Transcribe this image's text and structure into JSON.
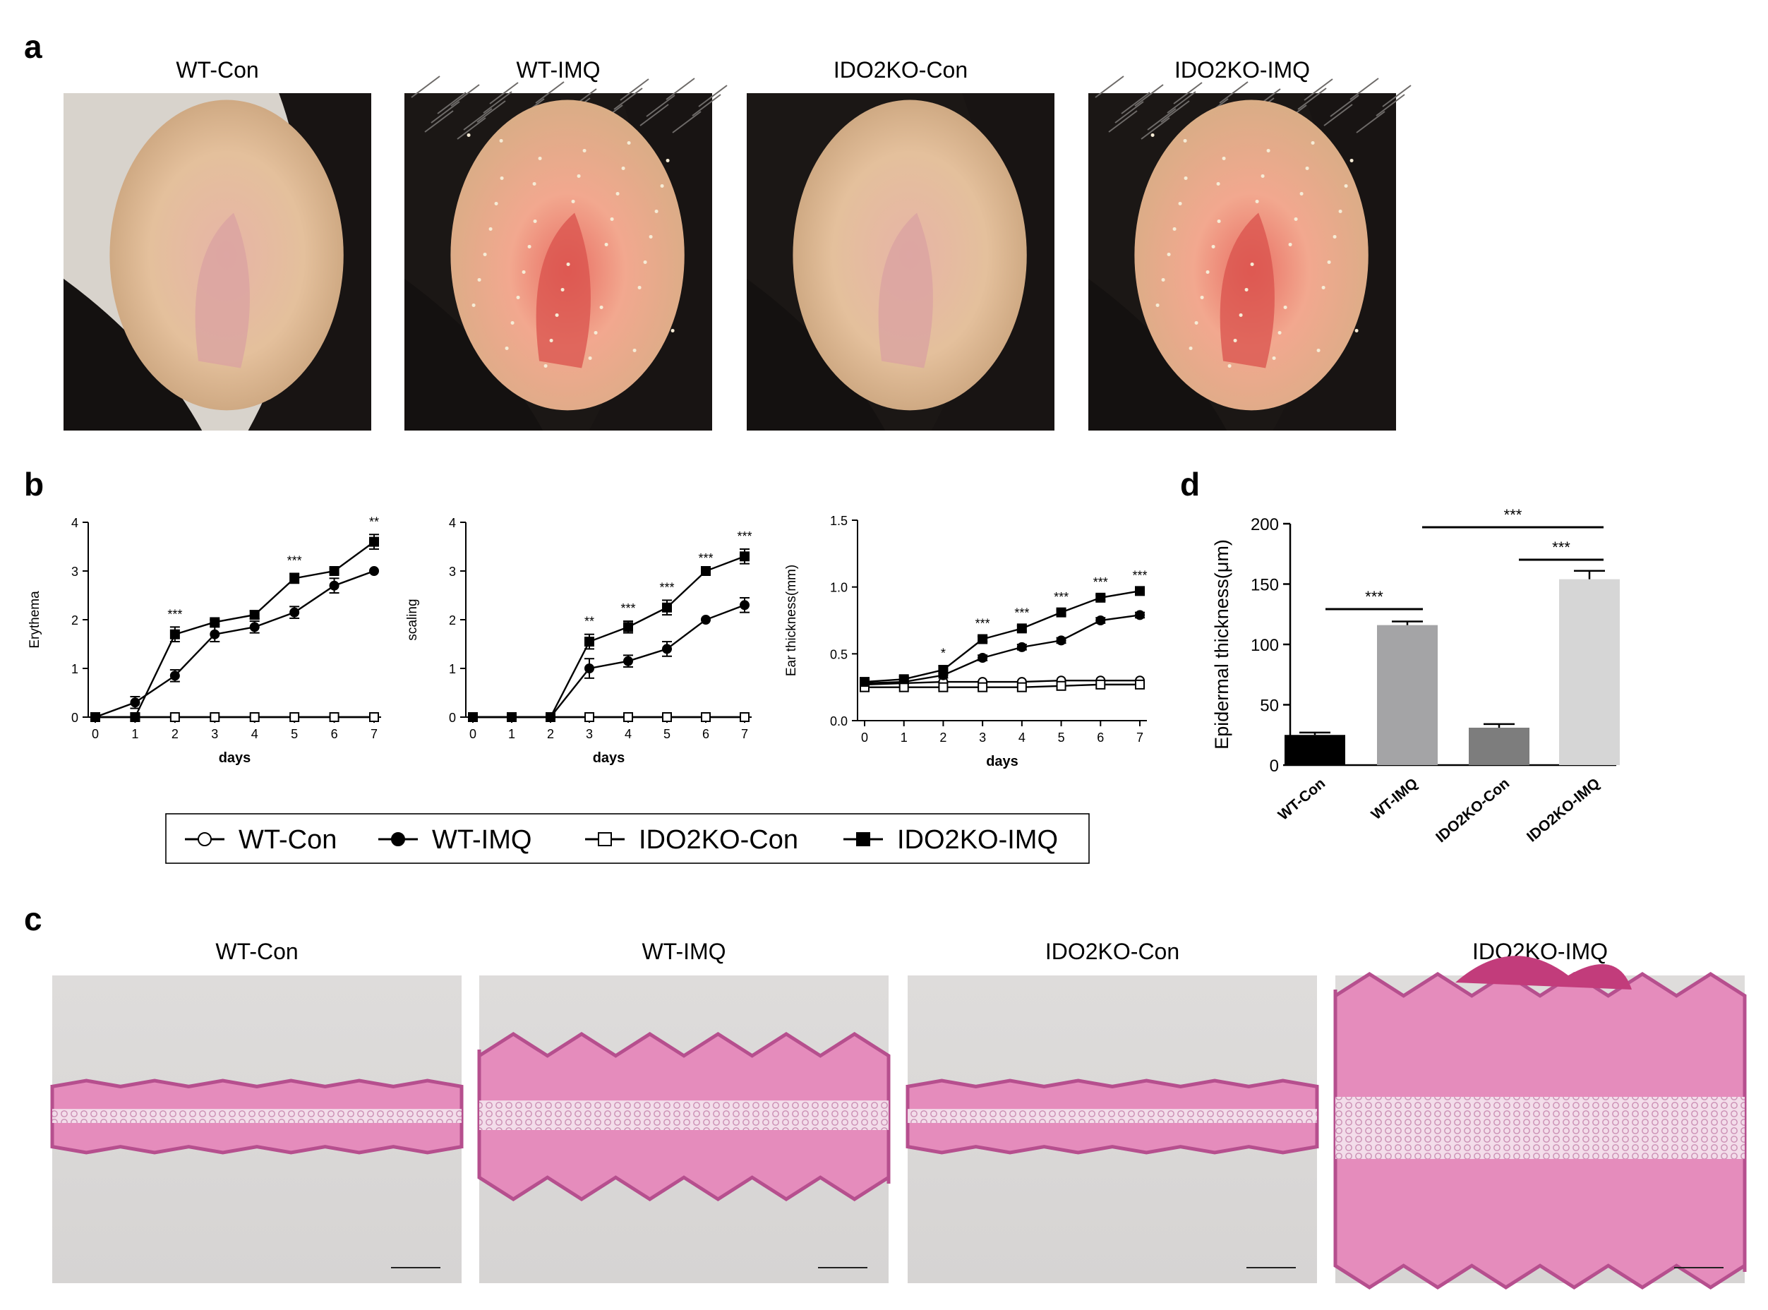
{
  "panels": {
    "a": {
      "letter": "a",
      "photos": [
        {
          "label": "WT-Con",
          "kind": "ear-normal"
        },
        {
          "label": "WT-IMQ",
          "kind": "ear-inflamed"
        },
        {
          "label": "IDO2KO-Con",
          "kind": "ear-normal"
        },
        {
          "label": "IDO2KO-IMQ",
          "kind": "ear-inflamed"
        }
      ]
    },
    "b": {
      "letter": "b"
    },
    "c": {
      "letter": "c",
      "histology": [
        {
          "label": "WT-Con",
          "kind": "thin"
        },
        {
          "label": "WT-IMQ",
          "kind": "thick"
        },
        {
          "label": "IDO2KO-Con",
          "kind": "thin"
        },
        {
          "label": "IDO2KO-IMQ",
          "kind": "very-thick"
        }
      ]
    },
    "d": {
      "letter": "d"
    }
  },
  "legend": {
    "entries": [
      {
        "label": "WT-Con",
        "marker": "open-circle"
      },
      {
        "label": "WT-IMQ",
        "marker": "filled-circle"
      },
      {
        "label": "IDO2KO-Con",
        "marker": "open-square"
      },
      {
        "label": "IDO2KO-IMQ",
        "marker": "filled-square"
      }
    ]
  },
  "colors": {
    "line": "#000000",
    "bar_wt_con": "#000000",
    "bar_wt_imq": "#a4a4a6",
    "bar_ido2ko_con": "#7d7d7d",
    "bar_ido2ko_imq": "#d6d6d6",
    "skin_normal": "#e9c7a4",
    "skin_inflamed": "#f09a86",
    "tissue_pink": "#e58cbc",
    "tissue_purple": "#b64f8e",
    "slide_bg": "#dcdad9"
  },
  "chart_data": [
    {
      "type": "line",
      "panel": "b",
      "xlabel": "days",
      "ylabel": "Erythema",
      "x": [
        0,
        1,
        2,
        3,
        4,
        5,
        6,
        7
      ],
      "xticks": [
        "0",
        "1",
        "2",
        "3",
        "4",
        "5",
        "6",
        "7"
      ],
      "ylim": [
        0,
        4
      ],
      "yticks": [
        "0",
        "1",
        "2",
        "3",
        "4"
      ],
      "series": [
        {
          "name": "WT-Con",
          "marker": "open-circle",
          "values": [
            0,
            0,
            0,
            0,
            0,
            0,
            0,
            0
          ],
          "err": [
            0,
            0,
            0,
            0,
            0,
            0,
            0,
            0
          ]
        },
        {
          "name": "WT-IMQ",
          "marker": "filled-circle",
          "values": [
            0,
            0.3,
            0.85,
            1.7,
            1.85,
            2.15,
            2.7,
            3.0
          ],
          "err": [
            0,
            0.12,
            0.12,
            0.15,
            0.12,
            0.12,
            0.15,
            0
          ]
        },
        {
          "name": "IDO2KO-Con",
          "marker": "open-square",
          "values": [
            0,
            0,
            0,
            0,
            0,
            0,
            0,
            0
          ],
          "err": [
            0,
            0,
            0,
            0,
            0,
            0,
            0,
            0
          ]
        },
        {
          "name": "IDO2KO-IMQ",
          "marker": "filled-square",
          "values": [
            0,
            0,
            1.7,
            1.95,
            2.1,
            2.85,
            3.0,
            3.6
          ],
          "err": [
            0,
            0,
            0.15,
            0.05,
            0.08,
            0.1,
            0.05,
            0.15
          ]
        }
      ],
      "annotations": [
        {
          "x": 2,
          "text": "***"
        },
        {
          "x": 5,
          "text": "***"
        },
        {
          "x": 7,
          "text": "**"
        }
      ]
    },
    {
      "type": "line",
      "panel": "b",
      "xlabel": "days",
      "ylabel": "scaling",
      "x": [
        0,
        1,
        2,
        3,
        4,
        5,
        6,
        7
      ],
      "xticks": [
        "0",
        "1",
        "2",
        "3",
        "4",
        "5",
        "6",
        "7"
      ],
      "ylim": [
        0,
        4
      ],
      "yticks": [
        "0",
        "1",
        "2",
        "3",
        "4"
      ],
      "series": [
        {
          "name": "WT-Con",
          "marker": "open-circle",
          "values": [
            0,
            0,
            0,
            0,
            0,
            0,
            0,
            0
          ],
          "err": [
            0,
            0,
            0,
            0,
            0,
            0,
            0,
            0
          ]
        },
        {
          "name": "WT-IMQ",
          "marker": "filled-circle",
          "values": [
            0,
            0,
            0,
            1.0,
            1.15,
            1.4,
            2.0,
            2.3
          ],
          "err": [
            0,
            0,
            0,
            0.2,
            0.12,
            0.15,
            0,
            0.15
          ]
        },
        {
          "name": "IDO2KO-Con",
          "marker": "open-square",
          "values": [
            0,
            0,
            0,
            0,
            0,
            0,
            0,
            0
          ],
          "err": [
            0,
            0,
            0,
            0,
            0,
            0,
            0,
            0
          ]
        },
        {
          "name": "IDO2KO-IMQ",
          "marker": "filled-square",
          "values": [
            0,
            0,
            0,
            1.55,
            1.85,
            2.25,
            3.0,
            3.3
          ],
          "err": [
            0,
            0,
            0,
            0.15,
            0.12,
            0.15,
            0,
            0.15
          ]
        }
      ],
      "annotations": [
        {
          "x": 3,
          "text": "**"
        },
        {
          "x": 4,
          "text": "***"
        },
        {
          "x": 5,
          "text": "***"
        },
        {
          "x": 6,
          "text": "***"
        },
        {
          "x": 7,
          "text": "***"
        }
      ]
    },
    {
      "type": "line",
      "panel": "b",
      "xlabel": "days",
      "ylabel": "Ear thickness(mm)",
      "x": [
        0,
        1,
        2,
        3,
        4,
        5,
        6,
        7
      ],
      "xticks": [
        "0",
        "1",
        "2",
        "3",
        "4",
        "5",
        "6",
        "7"
      ],
      "ylim": [
        0,
        1.5
      ],
      "yticks": [
        "0.0",
        "0.5",
        "1.0",
        "1.5"
      ],
      "series": [
        {
          "name": "WT-Con",
          "marker": "open-circle",
          "values": [
            0.27,
            0.28,
            0.29,
            0.29,
            0.29,
            0.3,
            0.3,
            0.3
          ],
          "err": [
            0,
            0,
            0,
            0,
            0,
            0,
            0,
            0
          ]
        },
        {
          "name": "WT-IMQ",
          "marker": "filled-circle",
          "values": [
            0.28,
            0.29,
            0.34,
            0.47,
            0.55,
            0.6,
            0.75,
            0.79
          ],
          "err": [
            0.02,
            0.02,
            0.02,
            0.02,
            0.02,
            0.02,
            0.02,
            0.02
          ]
        },
        {
          "name": "IDO2KO-Con",
          "marker": "open-square",
          "values": [
            0.25,
            0.25,
            0.25,
            0.25,
            0.25,
            0.26,
            0.27,
            0.27
          ],
          "err": [
            0,
            0,
            0,
            0,
            0,
            0,
            0,
            0
          ]
        },
        {
          "name": "IDO2KO-IMQ",
          "marker": "filled-square",
          "values": [
            0.29,
            0.31,
            0.38,
            0.61,
            0.69,
            0.81,
            0.92,
            0.97
          ],
          "err": [
            0.02,
            0.02,
            0.03,
            0.02,
            0.02,
            0.02,
            0.02,
            0.02
          ]
        }
      ],
      "annotations": [
        {
          "x": 2,
          "text": "*"
        },
        {
          "x": 3,
          "text": "***"
        },
        {
          "x": 4,
          "text": "***"
        },
        {
          "x": 5,
          "text": "***"
        },
        {
          "x": 6,
          "text": "***"
        },
        {
          "x": 7,
          "text": "***"
        }
      ]
    },
    {
      "type": "bar",
      "panel": "d",
      "ylabel": "Epidermal thickness(μm)",
      "categories": [
        "WT-Con",
        "WT-IMQ",
        "IDO2KO-Con",
        "IDO2KO-IMQ"
      ],
      "values": [
        25,
        116,
        31,
        154
      ],
      "err": [
        2,
        3,
        3,
        7
      ],
      "ylim": [
        0,
        200
      ],
      "yticks": [
        "0",
        "50",
        "100",
        "150",
        "200"
      ],
      "significance": [
        {
          "from": 0,
          "to": 1,
          "text": "***"
        },
        {
          "from": 1,
          "to": 3,
          "text": "***"
        },
        {
          "from": 2,
          "to": 3,
          "text": "***"
        }
      ]
    }
  ]
}
